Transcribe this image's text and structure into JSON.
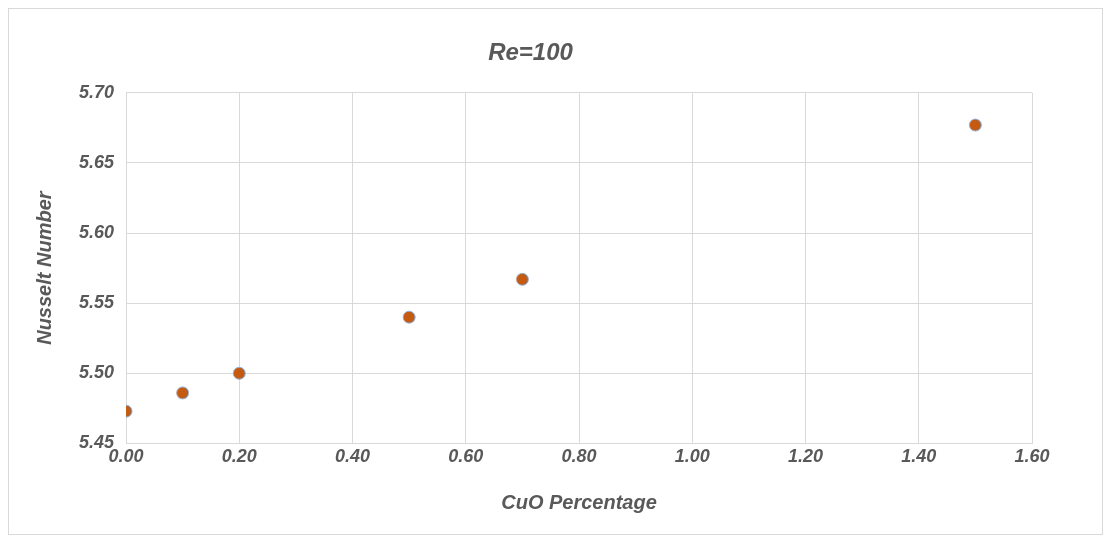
{
  "chart_data": {
    "type": "scatter",
    "title": "Re=100",
    "xlabel": "CuO Percentage",
    "ylabel": "Nusselt Number",
    "x": [
      0,
      0.1,
      0.2,
      0.5,
      0.7,
      1.5
    ],
    "series": [
      {
        "color": "#c55a11",
        "values": [
          5.473,
          5.486,
          5.5,
          5.54,
          5.567,
          5.677
        ]
      }
    ],
    "xlim": [
      0,
      1.6
    ],
    "xticks": [
      {
        "value": 0,
        "label": "0.00"
      },
      {
        "value": 0.2,
        "label": "0.20"
      },
      {
        "value": 0.4,
        "label": "0.40"
      },
      {
        "value": 0.6,
        "label": "0.60"
      },
      {
        "value": 0.8,
        "label": "0.80"
      },
      {
        "value": 1,
        "label": "1.00"
      },
      {
        "value": 1.2,
        "label": "1.20"
      },
      {
        "value": 1.4,
        "label": "1.40"
      },
      {
        "value": 1.6,
        "label": "1.60"
      }
    ],
    "ylim": [
      5.45,
      5.7
    ],
    "yticks": [
      {
        "value": 5.45,
        "label": "5.45"
      },
      {
        "value": 5.5,
        "label": "5.50"
      },
      {
        "value": 5.55,
        "label": "5.55"
      },
      {
        "value": 5.6,
        "label": "5.60"
      },
      {
        "value": 5.65,
        "label": "5.65"
      },
      {
        "value": 5.7,
        "label": "5.70"
      }
    ],
    "grid": true,
    "marker": "circle",
    "legend": false
  }
}
